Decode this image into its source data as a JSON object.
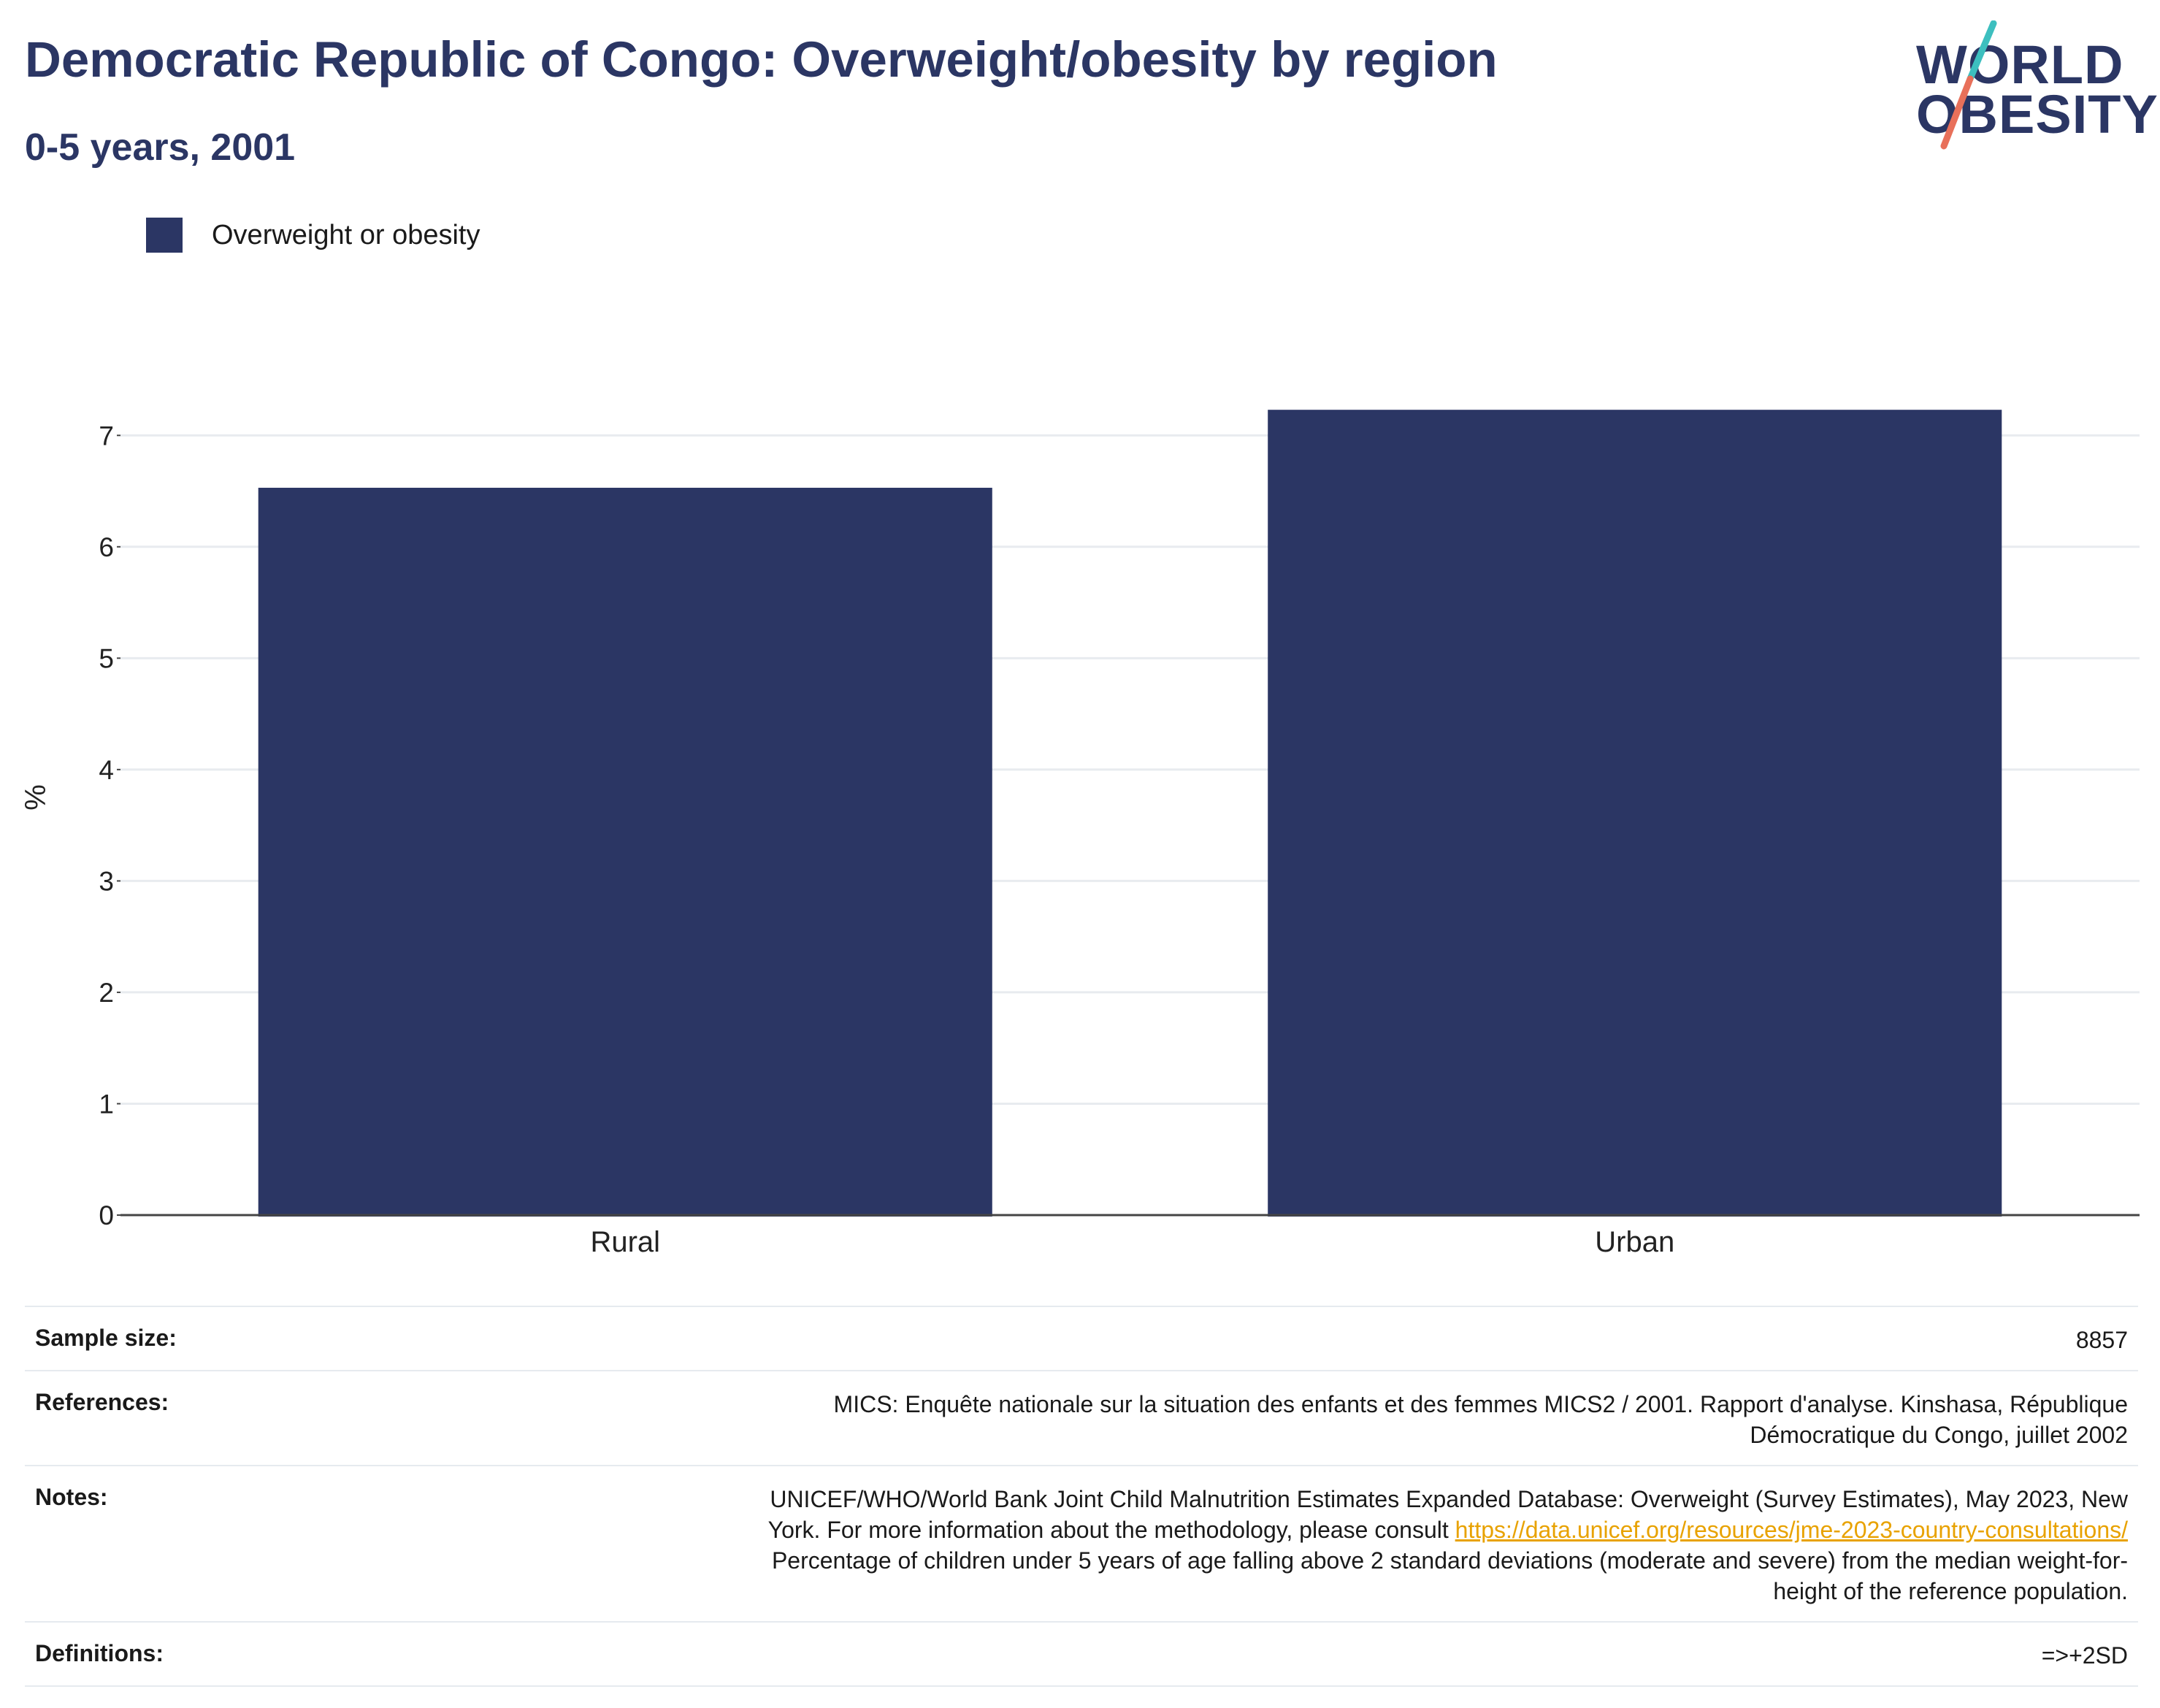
{
  "header": {
    "title": "Democratic Republic of Congo: Overweight/obesity by region",
    "subtitle": "0-5 years, 2001"
  },
  "logo": {
    "line1": "WORLD",
    "line2": "OBESITY"
  },
  "legend": {
    "label": "Overweight or obesity",
    "color": "#2b3664"
  },
  "chart_data": {
    "type": "bar",
    "categories": [
      "Rural",
      "Urban"
    ],
    "series": [
      {
        "name": "Overweight or obesity",
        "values": [
          6.53,
          7.23
        ],
        "color": "#2b3664"
      }
    ],
    "ylabel": "%",
    "ylim": [
      0,
      7.5
    ],
    "yticks": [
      0,
      1,
      2,
      3,
      4,
      5,
      6,
      7
    ],
    "grid": true,
    "legend_position": "top-left"
  },
  "info": {
    "sample_size": {
      "label": "Sample size:",
      "value": "8857"
    },
    "references": {
      "label": "References:",
      "line1": "MICS: Enquête nationale sur la situation des enfants et des femmes MICS2 / 2001. Rapport d'analyse. Kinshasa, République",
      "line2": "Démocratique du Congo, juillet 2002"
    },
    "notes": {
      "label": "Notes:",
      "line1": "UNICEF/WHO/World Bank Joint Child Malnutrition Estimates Expanded Database: Overweight (Survey Estimates), May 2023, New",
      "line2_prefix": "York. For more information about the methodology, please consult",
      "link": "https://data.unicef.org/resources/jme-2023-country-consultations/",
      "line3": "Percentage of children under 5 years of age falling above 2 standard deviations (moderate and severe) from the median weight-for-",
      "line4": "height of the reference population."
    },
    "definitions": {
      "label": "Definitions:",
      "value": "=>+2SD"
    }
  },
  "colors": {
    "brand": "#2b3664",
    "accent_teal": "#3dbfbf",
    "accent_coral": "#e8705a",
    "link": "#e8a200"
  }
}
